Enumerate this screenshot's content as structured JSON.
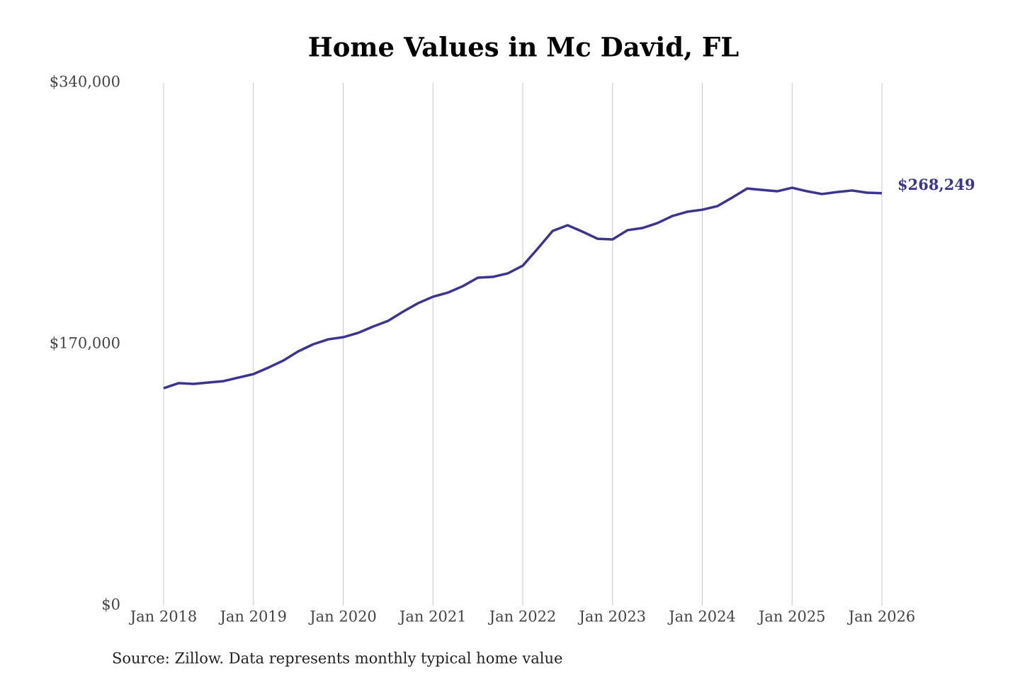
{
  "chart_data": {
    "type": "line",
    "title": "Home Values in Mc David, FL",
    "source": "Source: Zillow. Data represents monthly typical home value",
    "categories": [
      "Jan 2018",
      null,
      null,
      null,
      null,
      null,
      "Jan 2019",
      null,
      null,
      null,
      null,
      null,
      "Jan 2020",
      null,
      null,
      null,
      null,
      null,
      "Jan 2021",
      null,
      null,
      null,
      null,
      null,
      "Jan 2022",
      null,
      null,
      null,
      null,
      null,
      "Jan 2023",
      null,
      null,
      null,
      null,
      null,
      "Jan 2024",
      null,
      null,
      null,
      null,
      null,
      "Jan 2025",
      null,
      null,
      null,
      null,
      null,
      "Jan 2026"
    ],
    "values": [
      141400,
      144700,
      144200,
      145100,
      146000,
      148300,
      150600,
      154800,
      159400,
      165400,
      170000,
      173200,
      174600,
      177400,
      181500,
      185200,
      191200,
      196700,
      200900,
      203600,
      207800,
      213300,
      213800,
      216100,
      221100,
      232200,
      243700,
      247400,
      243200,
      238600,
      238200,
      244200,
      245600,
      248800,
      253400,
      256200,
      257500,
      259800,
      265400,
      271300,
      270400,
      269500,
      271800,
      269500,
      267700,
      269000,
      270000,
      268600,
      268249
    ],
    "value_labels": [
      null,
      null,
      null,
      null,
      null,
      null,
      null,
      null,
      null,
      null,
      null,
      null,
      null,
      null,
      null,
      null,
      null,
      null,
      null,
      null,
      null,
      null,
      null,
      null,
      null,
      null,
      null,
      null,
      null,
      null,
      null,
      null,
      null,
      null,
      null,
      null,
      null,
      null,
      null,
      null,
      null,
      null,
      null,
      null,
      null,
      null,
      null,
      null,
      "$268,249"
    ],
    "color": "#3b3591",
    "ylim": [
      0,
      340000
    ],
    "yticks": [
      {
        "value": 0,
        "label": "$0"
      },
      {
        "value": 170000,
        "label": "$170,000"
      },
      {
        "value": 340000,
        "label": "$340,000"
      }
    ],
    "grid": true
  }
}
